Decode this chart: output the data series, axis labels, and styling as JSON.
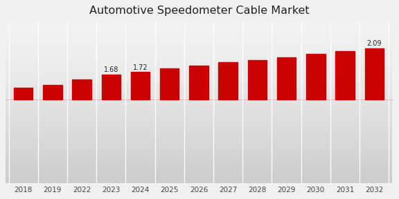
{
  "title": "Automotive Speedometer Cable Market",
  "categories": [
    "2018",
    "2019",
    "2022",
    "2023",
    "2024",
    "2025",
    "2026",
    "2027",
    "2028",
    "2029",
    "2030",
    "2031",
    "2032"
  ],
  "values": [
    1.48,
    1.52,
    1.61,
    1.68,
    1.72,
    1.78,
    1.82,
    1.87,
    1.91,
    1.95,
    2.0,
    2.05,
    2.09
  ],
  "bar_color": "#cc0000",
  "annotated_indices": [
    3,
    4,
    12
  ],
  "annotated_labels": [
    "1.68",
    "1.72",
    "2.09"
  ],
  "bg_top": "#f0f0f0",
  "bg_bottom": "#d8d8d8",
  "title_fontsize": 11.5,
  "label_fontsize": 7.5,
  "annotation_fontsize": 7,
  "ylim_min": 0.0,
  "ylim_max": 2.5,
  "bar_bottom": 1.3
}
